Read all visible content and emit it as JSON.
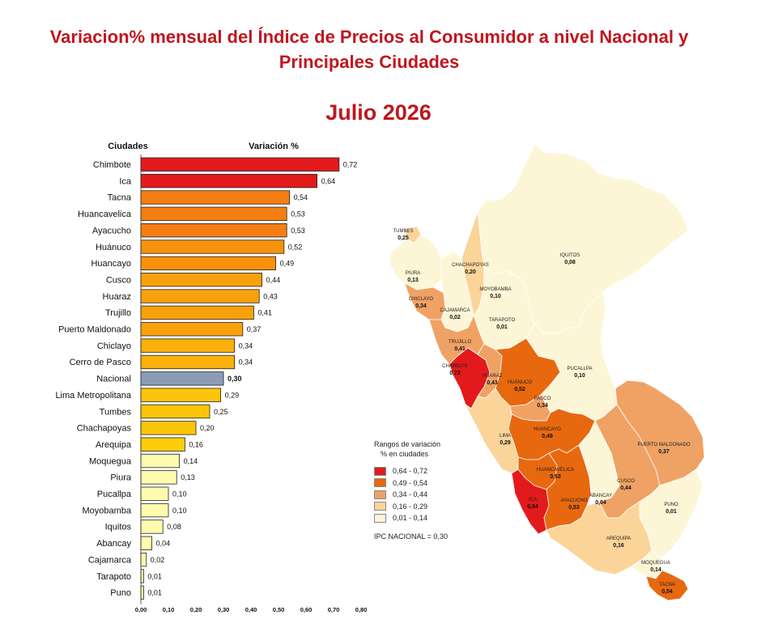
{
  "title_line1": "Variacion% mensual del Índice de Precios al Consumidor a nivel Nacional y",
  "title_line2": "Principales Ciudades",
  "period": "Julio 2026",
  "chart_data": {
    "type": "bar",
    "orientation": "horizontal",
    "column_headers": {
      "cities": "Ciudades",
      "values": "Variación %"
    },
    "categories": [
      "Chimbote",
      "Ica",
      "Tacna",
      "Huancavelica",
      "Ayacucho",
      "Huánuco",
      "Huancayo",
      "Cusco",
      "Huaraz",
      "Trujillo",
      "Puerto Maldonado",
      "Chiclayo",
      "Cerro de Pasco",
      "Nacional",
      "Lima Metropolitana",
      "Tumbes",
      "Chachapoyas",
      "Arequipa",
      "Moquegua",
      "Piura",
      "Pucallpa",
      "Moyobamba",
      "Iquitos",
      "Abancay",
      "Cajamarca",
      "Tarapoto",
      "Puno"
    ],
    "values": [
      0.72,
      0.64,
      0.54,
      0.53,
      0.53,
      0.52,
      0.49,
      0.44,
      0.43,
      0.41,
      0.37,
      0.34,
      0.34,
      0.3,
      0.29,
      0.25,
      0.2,
      0.16,
      0.14,
      0.13,
      0.1,
      0.1,
      0.08,
      0.04,
      0.02,
      0.01,
      0.01
    ],
    "value_labels": [
      "0,72",
      "0,64",
      "0,54",
      "0,53",
      "0,53",
      "0,52",
      "0,49",
      "0,44",
      "0,43",
      "0,41",
      "0,37",
      "0,34",
      "0,34",
      "0,30",
      "0,29",
      "0,25",
      "0,20",
      "0,16",
      "0,14",
      "0,13",
      "0,10",
      "0,10",
      "0,08",
      "0,04",
      "0,02",
      "0,01",
      "0,01"
    ],
    "bar_colors": [
      "#e31a1c",
      "#e31a1c",
      "#f57e12",
      "#f57e12",
      "#f57e12",
      "#f7920f",
      "#f7920f",
      "#f9a10c",
      "#f9a10c",
      "#f9a10c",
      "#f9a10c",
      "#fbb00b",
      "#fbb00b",
      "#8c9cb4",
      "#fdc509",
      "#fdc509",
      "#fdc509",
      "#fdcd0a",
      "#fefaae",
      "#fefaae",
      "#fefaae",
      "#fefaae",
      "#fefaae",
      "#fefaae",
      "#fefaae",
      "#fefaae",
      "#fefaae"
    ],
    "highlight": "Nacional",
    "xlim": [
      0,
      0.8
    ],
    "xticks": [
      "0,00",
      "0,10",
      "0,20",
      "0,30",
      "0,40",
      "0,50",
      "0,60",
      "0,70",
      "0,80"
    ]
  },
  "map": {
    "legend_title_line1": "Rangos de variación",
    "legend_title_line2": "% en ciudades",
    "legend": [
      {
        "label": "0,64 - 0,72",
        "color": "#e31a1c"
      },
      {
        "label": "0,49 - 0,54",
        "color": "#e8680f"
      },
      {
        "label": "0,34 - 0,44",
        "color": "#f0a264"
      },
      {
        "label": "0,16 - 0,29",
        "color": "#fbd49a"
      },
      {
        "label": "0,01 - 0,14",
        "color": "#fdf6d6"
      }
    ],
    "ipc_note": "IPC NACIONAL =  0,30",
    "city_labels": [
      {
        "name": "TUMBES",
        "value": "0,25"
      },
      {
        "name": "PIURA",
        "value": "0,13"
      },
      {
        "name": "CHICLAYO",
        "value": "0,34"
      },
      {
        "name": "CAJAMARCA",
        "value": "0,02"
      },
      {
        "name": "CHACHAPOYAS",
        "value": "0,20"
      },
      {
        "name": "MOYOBAMBA",
        "value": "0,10"
      },
      {
        "name": "IQUITOS",
        "value": "0,08"
      },
      {
        "name": "TARAPOTO",
        "value": "0,01"
      },
      {
        "name": "TRUJILLO",
        "value": "0,41"
      },
      {
        "name": "CHIMBOTE",
        "value": "0,72"
      },
      {
        "name": "HUARAZ",
        "value": "0,43"
      },
      {
        "name": "HUÁNUCO",
        "value": "0,52"
      },
      {
        "name": "PUCALLPA",
        "value": "0,10"
      },
      {
        "name": "PASCO",
        "value": "0,34"
      },
      {
        "name": "LIMA",
        "value": "0,29"
      },
      {
        "name": "HUANCAYO",
        "value": "0,49"
      },
      {
        "name": "PUERTO MALDONADO",
        "value": "0,37"
      },
      {
        "name": "HUANCAVELICA",
        "value": "0,53"
      },
      {
        "name": "ICA",
        "value": "0,64"
      },
      {
        "name": "AYACUCHO",
        "value": "0,53"
      },
      {
        "name": "ABANCAY",
        "value": "0,04"
      },
      {
        "name": "CUSCO",
        "value": "0,44"
      },
      {
        "name": "PUNO",
        "value": "0,01"
      },
      {
        "name": "AREQUIPA",
        "value": "0,16"
      },
      {
        "name": "MOQUEGUA",
        "value": "0,14"
      },
      {
        "name": "TACNA",
        "value": "0,54"
      }
    ]
  }
}
